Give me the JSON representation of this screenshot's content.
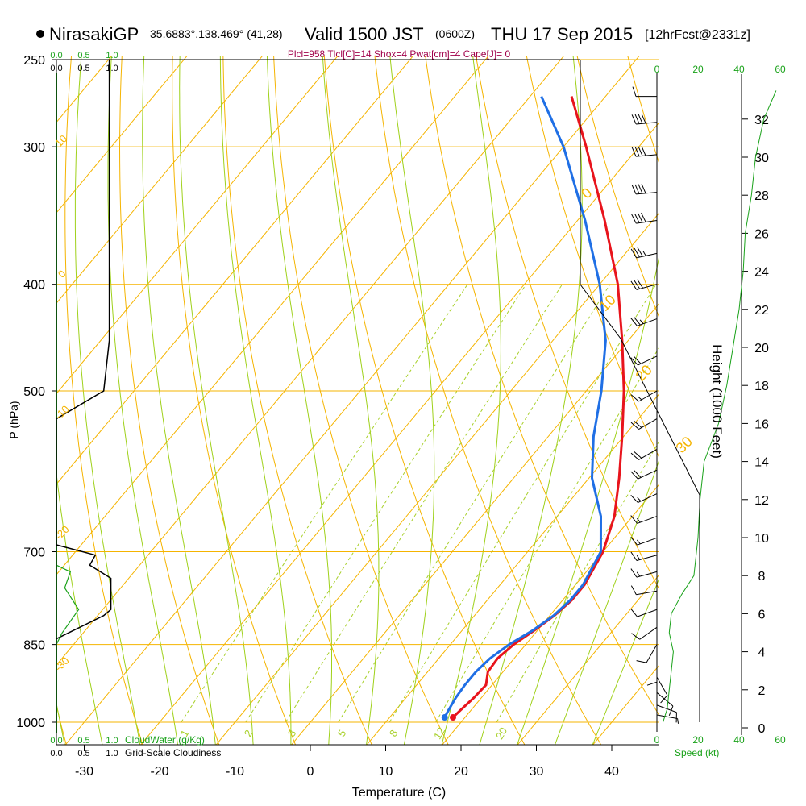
{
  "header": {
    "station": "NirasakiGP",
    "coords": "35.6883°,138.469° (41,28)",
    "valid": "Valid 1500 JST",
    "utc": "(0600Z)",
    "date": "THU 17 Sep 2015",
    "fcst": "[12hrFcst@2331z]"
  },
  "indices": "Plcl=958 Tlcl[C]=14 Shox=4 Pwat[cm]=4 Cape[J]= 0",
  "chart_data": {
    "type": "skew-t",
    "xlabel": "Temperature (C)",
    "ylabel": "P (hPa)",
    "right_label": "Height (1000 Feet)",
    "temperature_ticks": [
      -30,
      -20,
      -10,
      0,
      10,
      20,
      30,
      40
    ],
    "pressure_ticks": [
      250,
      300,
      400,
      500,
      700,
      850,
      1000
    ],
    "height_ticks": [
      0,
      2,
      4,
      6,
      8,
      10,
      12,
      14,
      16,
      18,
      20,
      22,
      24,
      26,
      28,
      30,
      32
    ],
    "cloud_scale_ticks": [
      "0.0",
      "0.5",
      "1.0"
    ],
    "cloud_water_label": "CloudWater (g/Kg)",
    "cloudiness_label": "Grid-Scale Cloudiness",
    "speed_ticks": [
      0,
      20,
      40,
      60
    ],
    "speed_label": "Speed (kt)",
    "dry_adiabat_labels": [
      "10",
      "0",
      "-10",
      "-20",
      "-30",
      "0",
      "10",
      "20",
      "30"
    ],
    "mixing_ratio_labels": [
      "1",
      "2",
      "3",
      "5",
      "8",
      "12",
      "20"
    ],
    "temperature_profile": [
      {
        "p": 990,
        "t": 18.4
      },
      {
        "p": 975,
        "t": 18.6
      },
      {
        "p": 950,
        "t": 19.0
      },
      {
        "p": 925,
        "t": 19.2
      },
      {
        "p": 900,
        "t": 18.0
      },
      {
        "p": 875,
        "t": 17.8
      },
      {
        "p": 850,
        "t": 18.4
      },
      {
        "p": 825,
        "t": 19.6
      },
      {
        "p": 800,
        "t": 20.6
      },
      {
        "p": 775,
        "t": 21.2
      },
      {
        "p": 750,
        "t": 21.2
      },
      {
        "p": 700,
        "t": 20.0
      },
      {
        "p": 650,
        "t": 17.6
      },
      {
        "p": 600,
        "t": 14.0
      },
      {
        "p": 550,
        "t": 9.8
      },
      {
        "p": 500,
        "t": 5.0
      },
      {
        "p": 450,
        "t": -0.8
      },
      {
        "p": 400,
        "t": -7.6
      },
      {
        "p": 350,
        "t": -16.4
      },
      {
        "p": 300,
        "t": -27.0
      },
      {
        "p": 270,
        "t": -34.5
      }
    ],
    "dewpoint_profile": [
      {
        "p": 990,
        "t": 17.3
      },
      {
        "p": 975,
        "t": 17.0
      },
      {
        "p": 950,
        "t": 16.6
      },
      {
        "p": 925,
        "t": 16.4
      },
      {
        "p": 900,
        "t": 16.4
      },
      {
        "p": 875,
        "t": 16.8
      },
      {
        "p": 850,
        "t": 17.8
      },
      {
        "p": 825,
        "t": 19.4
      },
      {
        "p": 800,
        "t": 20.5
      },
      {
        "p": 775,
        "t": 21.0
      },
      {
        "p": 750,
        "t": 21.0
      },
      {
        "p": 700,
        "t": 19.7
      },
      {
        "p": 650,
        "t": 15.8
      },
      {
        "p": 600,
        "t": 10.4
      },
      {
        "p": 550,
        "t": 6.0
      },
      {
        "p": 500,
        "t": 2.0
      },
      {
        "p": 450,
        "t": -3.0
      },
      {
        "p": 400,
        "t": -10.0
      },
      {
        "p": 350,
        "t": -19.0
      },
      {
        "p": 300,
        "t": -30.0
      },
      {
        "p": 270,
        "t": -38.5
      }
    ],
    "wind_barbs": [
      {
        "p": 270,
        "dir": 270,
        "spd": 10
      },
      {
        "p": 285,
        "dir": 265,
        "spd": 40
      },
      {
        "p": 305,
        "dir": 265,
        "spd": 40
      },
      {
        "p": 330,
        "dir": 265,
        "spd": 40
      },
      {
        "p": 350,
        "dir": 262,
        "spd": 40
      },
      {
        "p": 375,
        "dir": 258,
        "spd": 35
      },
      {
        "p": 400,
        "dir": 255,
        "spd": 30
      },
      {
        "p": 430,
        "dir": 250,
        "spd": 25
      },
      {
        "p": 465,
        "dir": 245,
        "spd": 20
      },
      {
        "p": 500,
        "dir": 240,
        "spd": 15
      },
      {
        "p": 530,
        "dir": 240,
        "spd": 20
      },
      {
        "p": 565,
        "dir": 240,
        "spd": 20
      },
      {
        "p": 590,
        "dir": 245,
        "spd": 20
      },
      {
        "p": 620,
        "dir": 245,
        "spd": 15
      },
      {
        "p": 650,
        "dir": 250,
        "spd": 15
      },
      {
        "p": 680,
        "dir": 250,
        "spd": 15
      },
      {
        "p": 705,
        "dir": 255,
        "spd": 15
      },
      {
        "p": 730,
        "dir": 255,
        "spd": 15
      },
      {
        "p": 760,
        "dir": 260,
        "spd": 10
      },
      {
        "p": 790,
        "dir": 250,
        "spd": 10
      },
      {
        "p": 820,
        "dir": 235,
        "spd": 10
      },
      {
        "p": 850,
        "dir": 210,
        "spd": 10
      },
      {
        "p": 880,
        "dir": 180,
        "spd": 10
      },
      {
        "p": 910,
        "dir": 150,
        "spd": 10
      },
      {
        "p": 940,
        "dir": 130,
        "spd": 10
      },
      {
        "p": 965,
        "dir": 110,
        "spd": 10
      },
      {
        "p": 985,
        "dir": 100,
        "spd": 5
      }
    ],
    "cloudiness_profile": [
      {
        "p": 250,
        "v": 0.95
      },
      {
        "p": 450,
        "v": 0.95
      },
      {
        "p": 500,
        "v": 0.85
      },
      {
        "p": 530,
        "v": 0.0
      },
      {
        "p": 690,
        "v": 0.0
      },
      {
        "p": 705,
        "v": 0.7
      },
      {
        "p": 720,
        "v": 0.6
      },
      {
        "p": 740,
        "v": 0.98
      },
      {
        "p": 790,
        "v": 0.98
      },
      {
        "p": 800,
        "v": 0.85
      },
      {
        "p": 840,
        "v": 0.0
      }
    ],
    "cloud_water_profile": [
      {
        "p": 720,
        "v": 0.0
      },
      {
        "p": 730,
        "v": 0.25
      },
      {
        "p": 755,
        "v": 0.15
      },
      {
        "p": 790,
        "v": 0.4
      },
      {
        "p": 830,
        "v": 0.1
      },
      {
        "p": 850,
        "v": 0.0
      }
    ],
    "wind_speed_profile": [
      {
        "h": 0.3,
        "s": 3
      },
      {
        "h": 1.0,
        "s": 5
      },
      {
        "h": 2.0,
        "s": 6
      },
      {
        "h": 3.0,
        "s": 7
      },
      {
        "h": 4.0,
        "s": 8
      },
      {
        "h": 5.0,
        "s": 6
      },
      {
        "h": 6.0,
        "s": 7
      },
      {
        "h": 7.0,
        "s": 12
      },
      {
        "h": 8.0,
        "s": 18
      },
      {
        "h": 10.0,
        "s": 20
      },
      {
        "h": 12.0,
        "s": 21
      },
      {
        "h": 14.0,
        "s": 23
      },
      {
        "h": 16.0,
        "s": 30
      },
      {
        "h": 18.0,
        "s": 34
      },
      {
        "h": 20.0,
        "s": 37
      },
      {
        "h": 22.0,
        "s": 40
      },
      {
        "h": 24.0,
        "s": 42
      },
      {
        "h": 26.0,
        "s": 43
      },
      {
        "h": 28.0,
        "s": 46
      },
      {
        "h": 30.0,
        "s": 48
      },
      {
        "h": 32.0,
        "s": 52
      },
      {
        "h": 33.5,
        "s": 58
      }
    ],
    "colors": {
      "temperature": "#e8141c",
      "dewpoint": "#1f6fe5",
      "isotherm_isobar": "#f5b400",
      "moist_adiabat": "#9fd11a",
      "mixing_ratio": "#a8d02a",
      "cloud_water": "#1aa21a",
      "indices_text": "#a0004a",
      "speed_axis": "#1aa21a"
    }
  }
}
